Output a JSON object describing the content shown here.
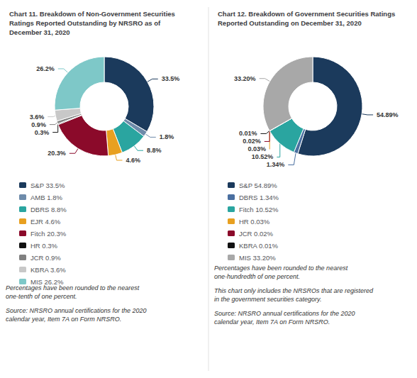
{
  "chart_data": [
    {
      "type": "pie",
      "title": "Chart 11. Breakdown of Non-Government Securities\nRatings Reported Outstanding by NRSRO as of\nDecember 31, 2020",
      "categories": [
        "S&P 33.5%",
        "AMB 1.8%",
        "DBRS 8.8%",
        "EJR 4.6%",
        "Fitch 20.3%",
        "HR 0.3%",
        "JCR 0.9%",
        "KBRA 3.6%",
        "MIS 26.2%"
      ],
      "values": [
        33.5,
        1.8,
        8.8,
        4.6,
        20.3,
        0.3,
        0.9,
        3.6,
        26.2
      ],
      "value_labels": [
        "33.5%",
        "1.8%",
        "8.8%",
        "4.6%",
        "20.3%",
        "0.3%",
        "0.9%",
        "3.6%",
        "26.2%"
      ],
      "colors": [
        "#1b3a5c",
        "#6e8baa",
        "#2aa5a0",
        "#e8a020",
        "#8b0a2a",
        "#111111",
        "#808080",
        "#c8c8c8",
        "#7ec8c8"
      ],
      "data_labels": true,
      "legend": "bottom",
      "annotations": [
        "Percentages have been rounded to the nearest\none-tenth of one percent.",
        "Source: NRSRO annual certifications for the 2020\ncalendar year, Item 7A on Form NRSRO."
      ]
    },
    {
      "type": "pie",
      "title": "Chart 12. Breakdown of Government Securities Ratings\nReported Outstanding on December 31, 2020",
      "categories": [
        "S&P 54.89%",
        "DBRS 1.34%",
        "Fitch 10.52%",
        "HR 0.03%",
        "JCR 0.02%",
        "KBRA 0.01%",
        "MIS 33.20%"
      ],
      "values": [
        54.89,
        1.34,
        10.52,
        0.03,
        0.02,
        0.01,
        33.2
      ],
      "value_labels": [
        "54.89%",
        "1.34%",
        "10.52%",
        "0.03%",
        "0.02%",
        "0.01%",
        "33.20%"
      ],
      "colors": [
        "#1b3a5c",
        "#4a6fa0",
        "#2aa5a0",
        "#e8a020",
        "#8b0a2a",
        "#111111",
        "#a8a8a8"
      ],
      "data_labels": true,
      "legend": "bottom",
      "annotations": [
        "Percentages have been rounded to the nearest\none-hundredth of one percent.",
        "This chart only includes the NRSROs that are registered\nin the government securities category.",
        "Source: NRSRO annual certifications for the 2020\ncalendar year, Item 7A on Form NRSRO."
      ]
    }
  ]
}
